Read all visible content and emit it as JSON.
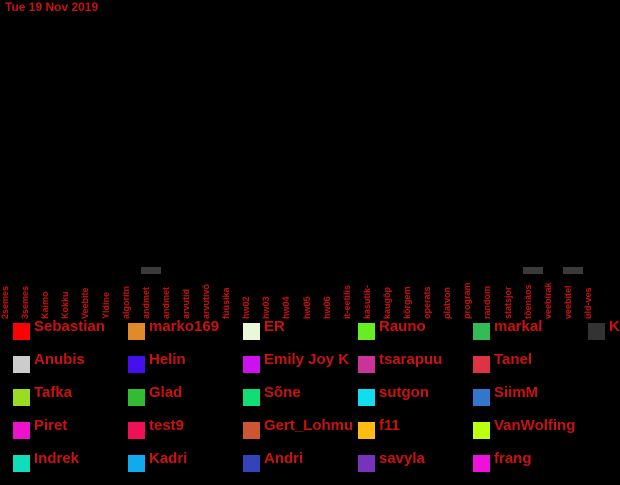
{
  "date_text": "Tue 19 Nov 2019",
  "chart_data": {
    "type": "bar",
    "categories": [
      "2semes",
      "3semes",
      "Kaimo",
      "Kokku",
      "Veebite",
      "Yldine",
      "algoritn",
      "andmet",
      "andmet",
      "arvutid",
      "arvutivõ",
      "füüsika",
      "hw02",
      "hw03",
      "hw04",
      "hw05",
      "hw06",
      "it-eetilis",
      "kasutik-",
      "kaugõp",
      "kõrgem",
      "operats",
      "platvon",
      "program",
      "random",
      "statsjor",
      "tõenäos",
      "veebirak",
      "veebitel",
      "üld-ves"
    ],
    "values": [
      0,
      0,
      0,
      0,
      0,
      0,
      0,
      1,
      0,
      0,
      0,
      0,
      0,
      0,
      0,
      0,
      0,
      0,
      0,
      0,
      0,
      0,
      0,
      0,
      0,
      0,
      1,
      0,
      1,
      0
    ],
    "legend": [
      {
        "name": "Sebastian",
        "color": "#ff0000"
      },
      {
        "name": "marko169",
        "color": "#e08a2c"
      },
      {
        "name": "ER",
        "color": "#e8f8d8"
      },
      {
        "name": "Rauno",
        "color": "#66ee22"
      },
      {
        "name": "markal",
        "color": "#33bb55"
      },
      {
        "name": "K",
        "color": "#333333"
      },
      {
        "name": "Anubis",
        "color": "#cccccc"
      },
      {
        "name": "Helin",
        "color": "#4411ee"
      },
      {
        "name": "Emily Joy K",
        "color": "#cc11ee"
      },
      {
        "name": "tsarapuu",
        "color": "#cc3399"
      },
      {
        "name": "Tanel",
        "color": "#dd3344"
      },
      {
        "name": "Tafka",
        "color": "#99dd22"
      },
      {
        "name": "Glad",
        "color": "#33bb33"
      },
      {
        "name": "Sõne",
        "color": "#11dd77"
      },
      {
        "name": "sutgon",
        "color": "#11ddee"
      },
      {
        "name": "SiimM",
        "color": "#3377cc"
      },
      {
        "name": "Piret",
        "color": "#ee11cc"
      },
      {
        "name": "test9",
        "color": "#ee1155"
      },
      {
        "name": "Gert_Lohmus",
        "color": "#cc5533"
      },
      {
        "name": "f11",
        "color": "#ffbb11"
      },
      {
        "name": "VanWolfing",
        "color": "#bbff11"
      },
      {
        "name": "Indrek",
        "color": "#11ddbb"
      },
      {
        "name": "Kadri",
        "color": "#11aaee"
      },
      {
        "name": "Andri",
        "color": "#3344bb"
      },
      {
        "name": "savyla",
        "color": "#7733bb"
      },
      {
        "name": "frang",
        "color": "#ee11dd"
      }
    ]
  }
}
